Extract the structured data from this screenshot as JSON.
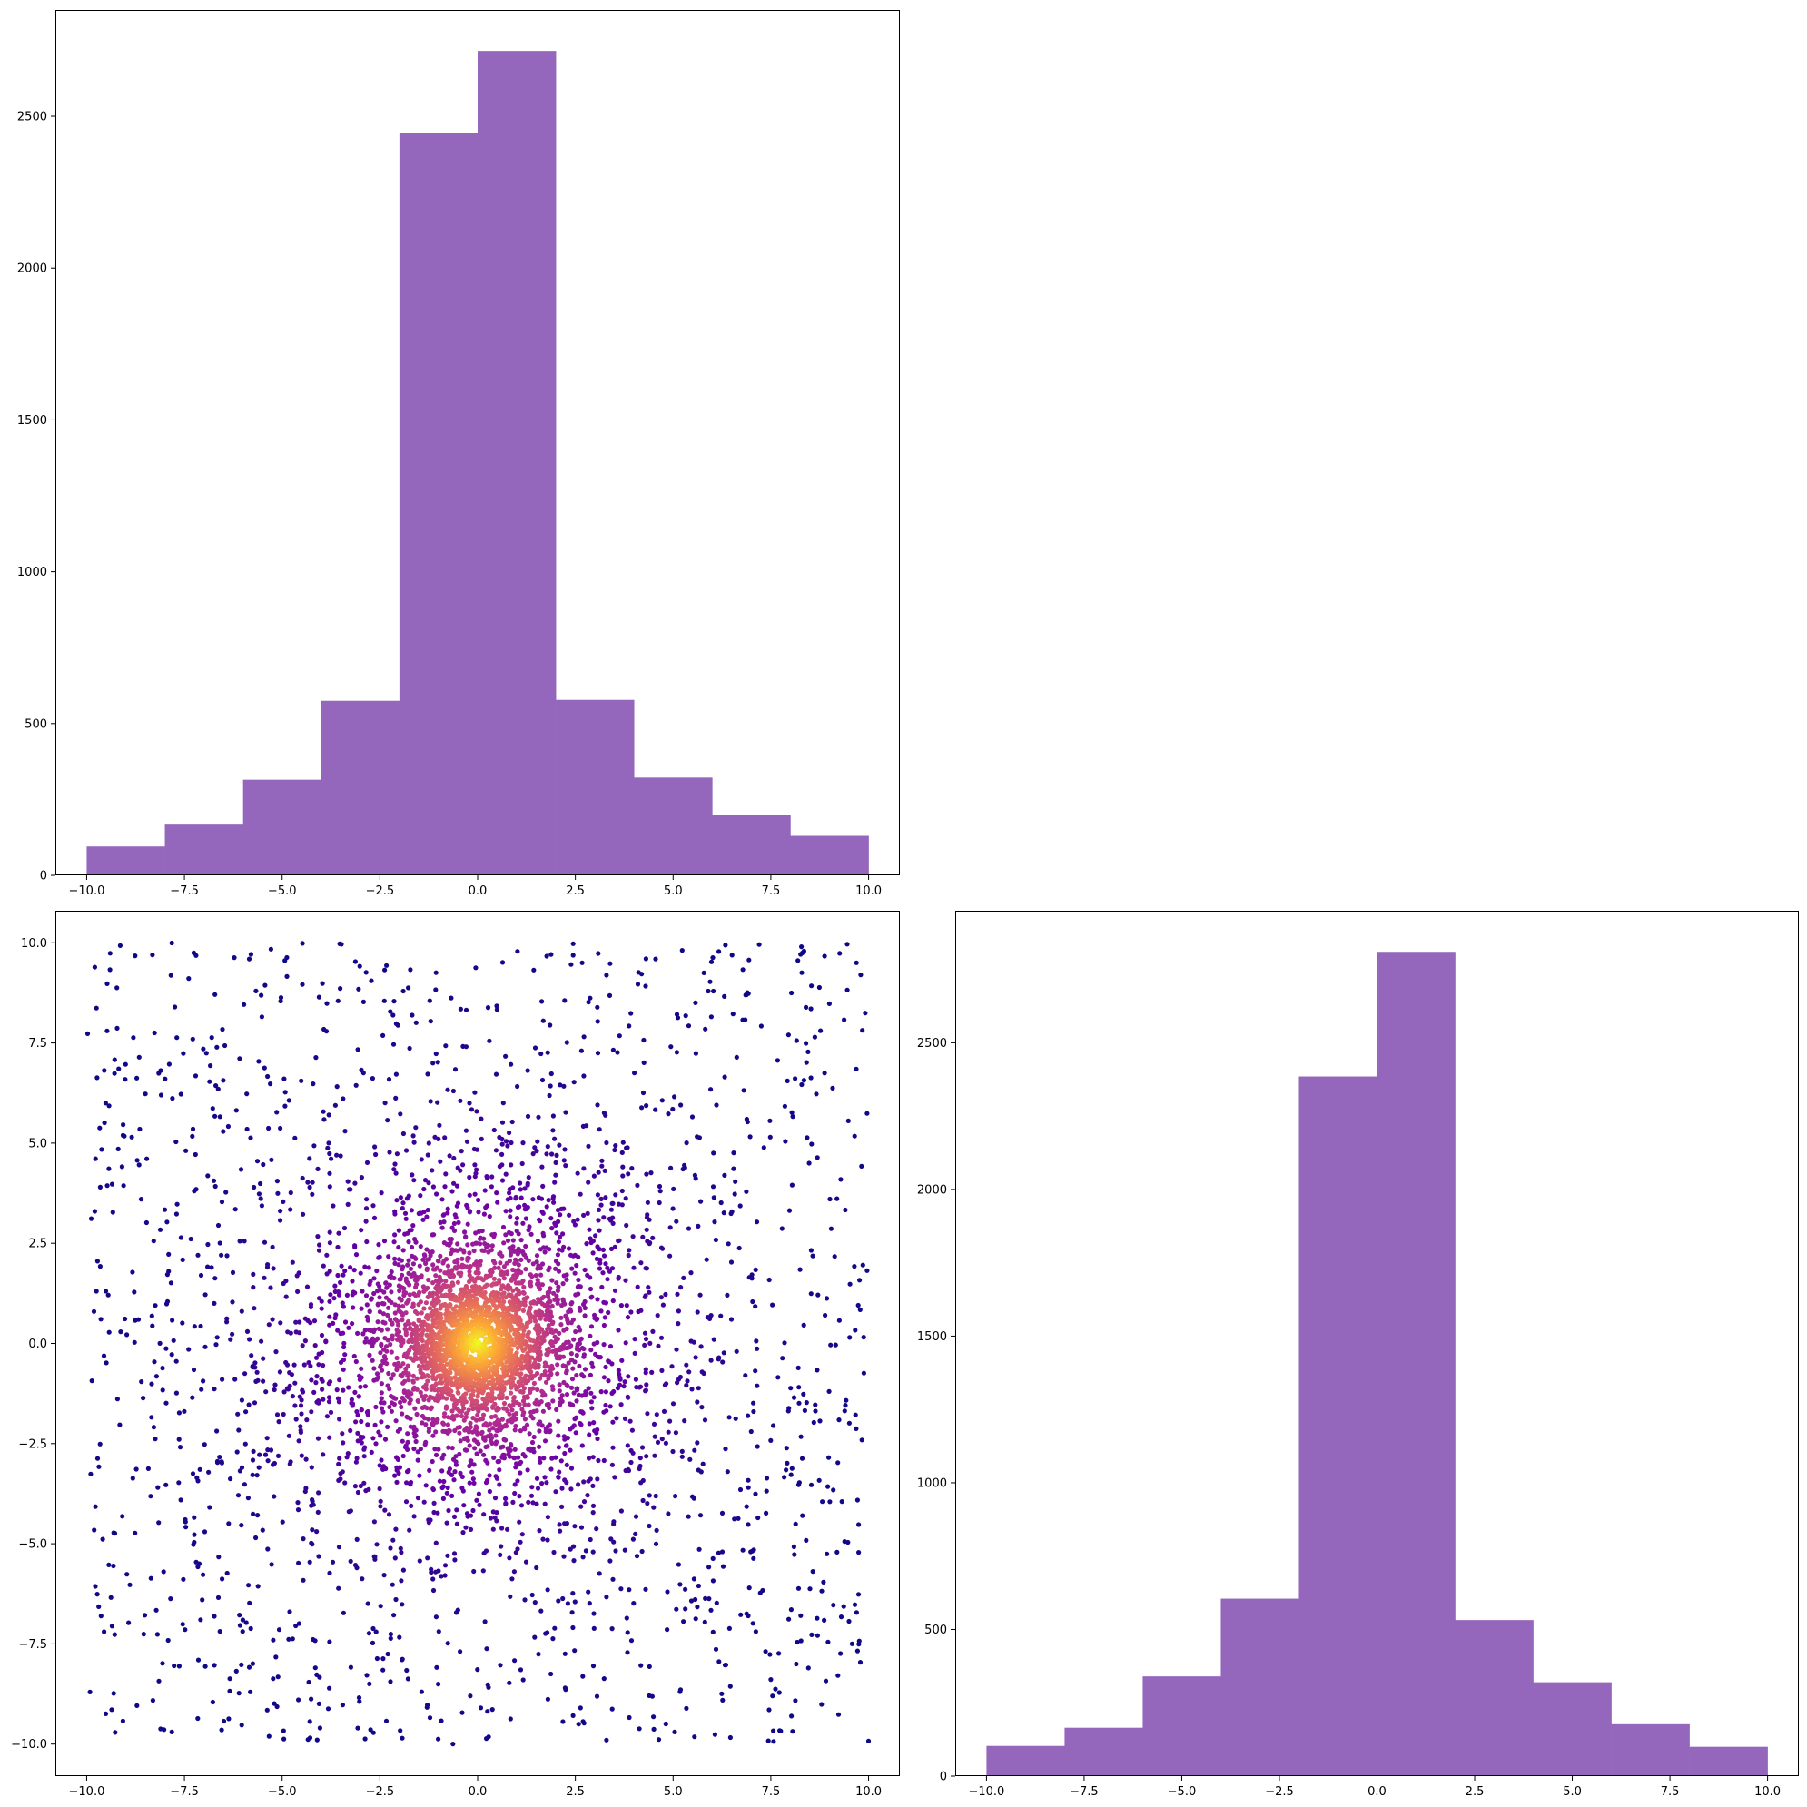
{
  "chart_data": [
    {
      "name": "top-left-histogram",
      "type": "bar",
      "title": "",
      "xlabel": "",
      "ylabel": "",
      "bar_color": "#9467bd",
      "bin_edges": [
        -10,
        -8,
        -6,
        -4,
        -2,
        0,
        2,
        4,
        6,
        8,
        10
      ],
      "values": [
        95,
        170,
        315,
        575,
        2445,
        2715,
        578,
        322,
        200,
        130
      ],
      "xlim": [
        -10.8,
        10.8
      ],
      "ylim": [
        0,
        2850
      ],
      "xticks": [
        -10.0,
        -7.5,
        -5.0,
        -2.5,
        0.0,
        2.5,
        5.0,
        7.5,
        10.0
      ],
      "xtick_labels": [
        "−10.0",
        "−7.5",
        "−5.0",
        "−2.5",
        "0.0",
        "2.5",
        "5.0",
        "7.5",
        "10.0"
      ],
      "yticks": [
        0,
        500,
        1000,
        1500,
        2000,
        2500
      ],
      "ytick_labels": [
        "0",
        "500",
        "1000",
        "1500",
        "2000",
        "2500"
      ]
    },
    {
      "name": "bottom-left-scatter",
      "type": "scatter",
      "title": "",
      "xlabel": "",
      "ylabel": "",
      "n_points": 5000,
      "distribution": "concentrated near (0, 0), spread over [-10, 10] in both x and y",
      "colormap": "plasma",
      "color_stops": [
        "#0d0887",
        "#6a00a8",
        "#b12a90",
        "#e16462",
        "#fca636",
        "#f0f921"
      ],
      "color_by": "point density (bright yellow at center, dark blue at edges)",
      "xlim": [
        -10.8,
        10.8
      ],
      "ylim": [
        -10.8,
        10.8
      ],
      "xticks": [
        -10.0,
        -7.5,
        -5.0,
        -2.5,
        0.0,
        2.5,
        5.0,
        7.5,
        10.0
      ],
      "xtick_labels": [
        "−10.0",
        "−7.5",
        "−5.0",
        "−2.5",
        "0.0",
        "2.5",
        "5.0",
        "7.5",
        "10.0"
      ],
      "yticks": [
        -10.0,
        -7.5,
        -5.0,
        -2.5,
        0.0,
        2.5,
        5.0,
        7.5,
        10.0
      ],
      "ytick_labels": [
        "−10.0",
        "−7.5",
        "−5.0",
        "−2.5",
        "0.0",
        "2.5",
        "5.0",
        "7.5",
        "10.0"
      ]
    },
    {
      "name": "bottom-right-histogram",
      "type": "bar",
      "title": "",
      "xlabel": "",
      "ylabel": "",
      "bar_color": "#9467bd",
      "bin_edges": [
        -10,
        -8,
        -6,
        -4,
        -2,
        0,
        2,
        4,
        6,
        8,
        10
      ],
      "values": [
        103,
        165,
        340,
        605,
        2385,
        2810,
        532,
        320,
        177,
        100
      ],
      "xlim": [
        -10.8,
        10.8
      ],
      "ylim": [
        0,
        2950
      ],
      "xticks": [
        -10.0,
        -7.5,
        -5.0,
        -2.5,
        0.0,
        2.5,
        5.0,
        7.5,
        10.0
      ],
      "xtick_labels": [
        "−10.0",
        "−7.5",
        "−5.0",
        "−2.5",
        "0.0",
        "2.5",
        "5.0",
        "7.5",
        "10.0"
      ],
      "yticks": [
        0,
        500,
        1000,
        1500,
        2000,
        2500
      ],
      "ytick_labels": [
        "0",
        "500",
        "1000",
        "1500",
        "2000",
        "2500"
      ]
    }
  ]
}
